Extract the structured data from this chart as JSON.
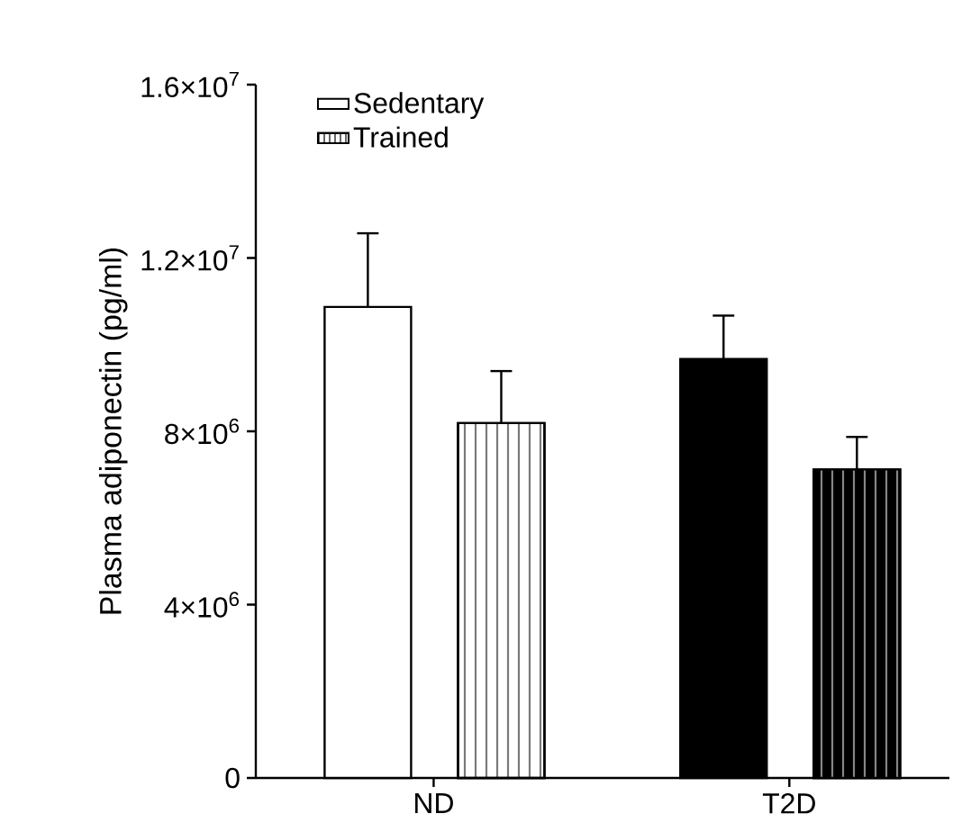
{
  "chart_data": {
    "type": "bar",
    "ylabel": "Plasma adiponectin (pg/ml)",
    "categories": [
      "ND",
      "T2D"
    ],
    "series": [
      {
        "name": "Sedentary",
        "colors": [
          "#ffffff",
          "#000000"
        ],
        "values": [
          10870000,
          9670000
        ],
        "errors": [
          1700000,
          1000000
        ]
      },
      {
        "name": "Trained",
        "colors": [
          "#ffffff",
          "#000000"
        ],
        "values": [
          8190000,
          7120000
        ],
        "errors": [
          1200000,
          750000
        ]
      }
    ],
    "ylim": [
      0,
      16000000
    ],
    "yticks": [
      0,
      {
        "value": 4000000,
        "label": "4×10$^{6}$"
      },
      {
        "value": 8000000,
        "label": "8×10$^{6}$"
      },
      {
        "value": 12000000,
        "label": "1.2×10$^{7}$"
      },
      {
        "value": 16000000,
        "label": "1.6×10$^{7}$"
      }
    ],
    "legend": "top left",
    "grid": false
  }
}
